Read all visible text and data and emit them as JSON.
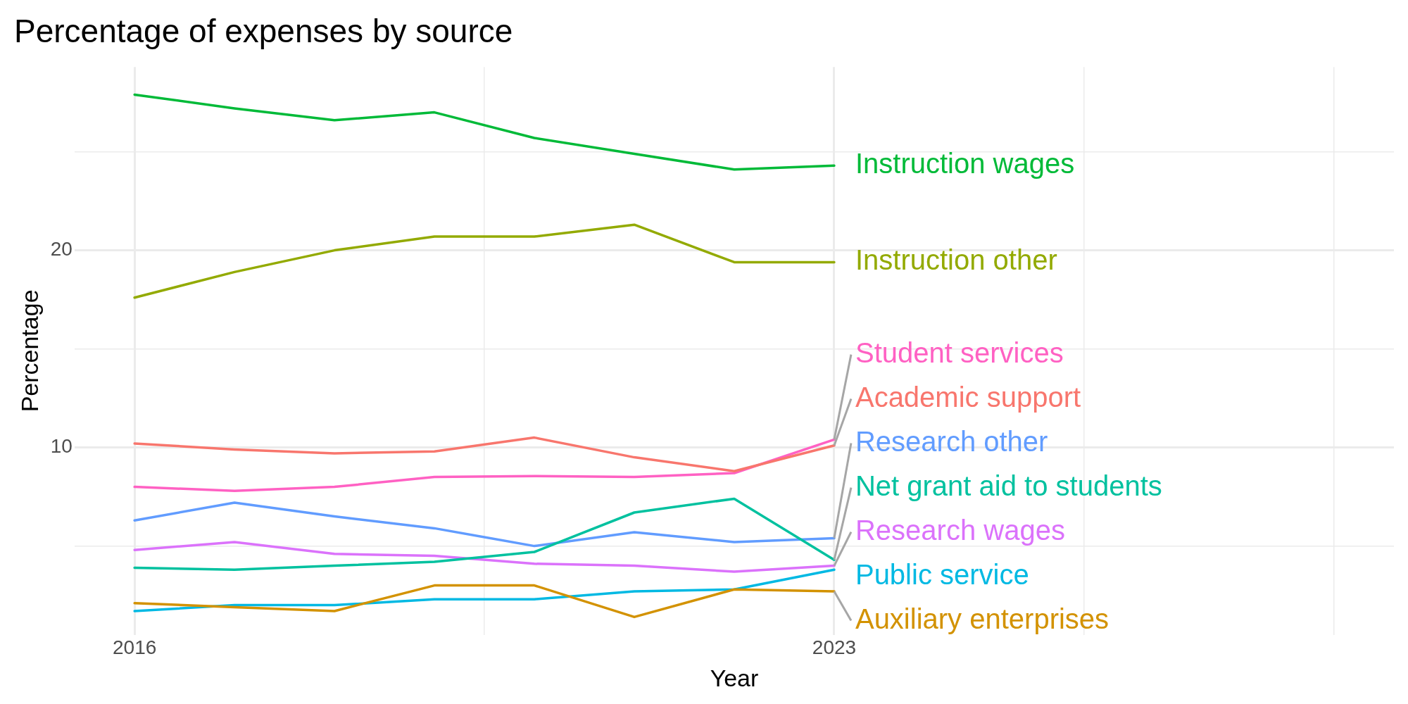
{
  "chart_data": {
    "type": "line",
    "title": "Percentage of expenses by source",
    "xlabel": "Year",
    "ylabel": "Percentage",
    "x": [
      2016,
      2017,
      2018,
      2019,
      2020,
      2021,
      2022,
      2023
    ],
    "series": [
      {
        "name": "Academic support",
        "color": "#f8766d",
        "values": [
          10.2,
          9.9,
          9.7,
          9.8,
          10.5,
          9.5,
          8.8,
          10.1
        ]
      },
      {
        "name": "Auxiliary enterprises",
        "color": "#d39200",
        "values": [
          2.1,
          1.9,
          1.7,
          3.0,
          3.0,
          1.4,
          2.8,
          2.7
        ]
      },
      {
        "name": "Instruction other",
        "color": "#93aa00",
        "values": [
          17.6,
          18.9,
          20.0,
          20.7,
          20.7,
          21.3,
          19.4,
          19.4
        ]
      },
      {
        "name": "Instruction wages",
        "color": "#00ba38",
        "values": [
          27.9,
          27.2,
          26.6,
          27.0,
          25.7,
          24.9,
          24.1,
          24.3
        ]
      },
      {
        "name": "Net grant aid to students",
        "color": "#00c19f",
        "values": [
          3.9,
          3.8,
          4.0,
          4.2,
          4.7,
          6.7,
          7.4,
          4.3
        ]
      },
      {
        "name": "Public service",
        "color": "#00b9e3",
        "values": [
          1.7,
          2.0,
          2.0,
          2.3,
          2.3,
          2.7,
          2.8,
          3.8
        ]
      },
      {
        "name": "Research other",
        "color": "#619cff",
        "values": [
          6.3,
          7.2,
          6.5,
          5.9,
          5.0,
          5.7,
          5.2,
          5.4
        ]
      },
      {
        "name": "Research wages",
        "color": "#db72fb",
        "values": [
          4.8,
          5.2,
          4.6,
          4.5,
          4.1,
          4.0,
          3.7,
          4.0
        ]
      },
      {
        "name": "Student services",
        "color": "#ff61c3",
        "values": [
          8.0,
          7.8,
          8.0,
          8.5,
          8.55,
          8.5,
          8.7,
          10.4
        ]
      }
    ],
    "xlim": [
      2015.4,
      2028.6
    ],
    "xticks": [
      2016,
      {
        "value": 2019.5,
        "label": null
      },
      2023,
      {
        "value": 2025.5,
        "label": null
      },
      {
        "value": 2028,
        "label": null
      }
    ],
    "ylim": [
      0.5,
      29.3
    ],
    "yticks": [
      {
        "value": 5,
        "label": null
      },
      10,
      {
        "value": 15,
        "label": null
      },
      20,
      {
        "value": 25,
        "label": null
      }
    ],
    "grid": true,
    "legend": false,
    "marker": "none",
    "line_style": "solid"
  }
}
